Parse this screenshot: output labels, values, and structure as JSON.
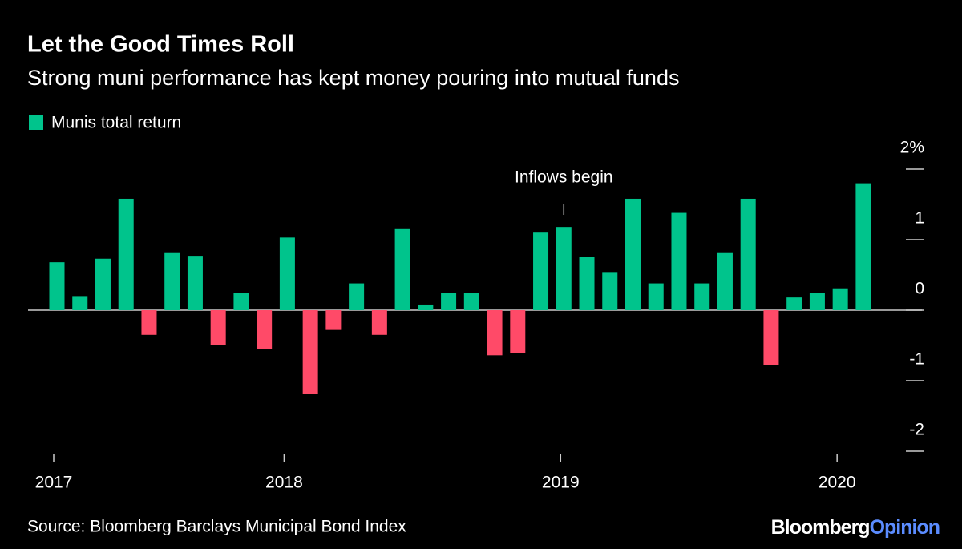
{
  "chart_data": {
    "type": "bar",
    "title": "Let the Good Times Roll",
    "subtitle": "Strong muni performance has kept money pouring into mutual funds",
    "legend": "Munis total return",
    "annotation": "Inflows begin",
    "annotation_index": 22,
    "source": "Source: Bloomberg Barclays Municipal Bond Index",
    "brand": "Bloomberg",
    "brand_suffix": "Opinion",
    "color": "#00c48c",
    "negative_color": "#ff4a68",
    "categories": [
      "2017",
      null,
      null,
      null,
      null,
      null,
      null,
      null,
      null,
      null,
      "2018",
      null,
      null,
      null,
      null,
      null,
      null,
      null,
      null,
      null,
      null,
      null,
      "2019",
      null,
      null,
      null,
      null,
      null,
      null,
      null,
      null,
      null,
      null,
      null,
      "2020",
      null
    ],
    "values": [
      0.68,
      0.2,
      0.73,
      1.58,
      -0.35,
      0.81,
      0.76,
      -0.5,
      0.25,
      -0.55,
      1.03,
      -1.19,
      -0.28,
      0.38,
      -0.35,
      1.15,
      0.08,
      0.25,
      0.25,
      -0.64,
      -0.61,
      1.1,
      1.18,
      0.75,
      0.53,
      1.58,
      0.38,
      1.38,
      0.38,
      0.81,
      1.58,
      -0.78,
      0.18,
      0.25,
      0.31,
      1.8
    ],
    "ylim": [
      -2,
      2
    ],
    "yticks": [
      {
        "value": 2,
        "label": "2%"
      },
      1,
      0,
      -1,
      -2
    ]
  }
}
